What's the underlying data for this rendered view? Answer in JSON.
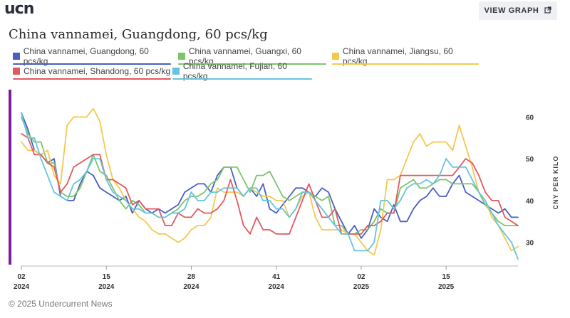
{
  "header": {
    "logo_text": "ucn",
    "view_graph_label": "VIEW GRAPH",
    "external_icon": "external-link-icon"
  },
  "title": "China vannamei, Guangdong, 60 pcs/kg",
  "footer": "© 2025 Undercurrent News",
  "chart_data": {
    "type": "line",
    "title": "China vannamei, Guangdong, 60 pcs/kg",
    "ylabel": "CNY PER KILO",
    "xlabel": "",
    "ylim": [
      25,
      65
    ],
    "yticks": [
      30,
      40,
      50,
      60
    ],
    "x_ticks": [
      {
        "day": "02",
        "year": "2024",
        "i": 0
      },
      {
        "day": "15",
        "year": "2024",
        "i": 13
      },
      {
        "day": "28",
        "year": "2024",
        "i": 26
      },
      {
        "day": "41",
        "year": "2024",
        "i": 39
      },
      {
        "day": "02",
        "year": "2025",
        "i": 52
      },
      {
        "day": "15",
        "year": "2025",
        "i": 65
      }
    ],
    "grid": false,
    "legend": "top",
    "series": [
      {
        "name": "China vannamei, Guangdong, 60 pcs/kg",
        "color": "#4a5fc1",
        "values": [
          61,
          57,
          52,
          51,
          49,
          50,
          41,
          40,
          40,
          44,
          47,
          46,
          43,
          42,
          41,
          40,
          41,
          37,
          40,
          38,
          37,
          38,
          37,
          38,
          39,
          42,
          43,
          44,
          44,
          42,
          46,
          48,
          48,
          43,
          41,
          43,
          41,
          44,
          38,
          37,
          39,
          41,
          43,
          43,
          42,
          41,
          43,
          42,
          38,
          35,
          32,
          34,
          31,
          33,
          38,
          36,
          35,
          39,
          35,
          35,
          38,
          40,
          41,
          43,
          41,
          41,
          44,
          46,
          42,
          41,
          40,
          39,
          38,
          37,
          38,
          36,
          36
        ]
      },
      {
        "name": "China vannamei, Guangxi, 60 pcs/kg",
        "color": "#7dc56b",
        "values": [
          60,
          56,
          54,
          54,
          49,
          49,
          42,
          41,
          41,
          43,
          47,
          51,
          47,
          46,
          43,
          40,
          38,
          40,
          39,
          37,
          37,
          36,
          36,
          37,
          38,
          40,
          41,
          41,
          42,
          44,
          45,
          48,
          48,
          48,
          45,
          42,
          46,
          46,
          47,
          44,
          41,
          40,
          41,
          42,
          42,
          41,
          40,
          41,
          34,
          34,
          32,
          32,
          33,
          33,
          35,
          38,
          37,
          37,
          43,
          44,
          45,
          43,
          43,
          44,
          45,
          45,
          44,
          44,
          44,
          44,
          42,
          39,
          37,
          35,
          34,
          34,
          34
        ]
      },
      {
        "name": "China vannamei, Jiangsu, 60 pcs/kg",
        "color": "#f4c84f",
        "values": [
          54,
          52,
          52,
          51,
          52,
          46,
          44,
          58,
          60,
          60,
          60,
          62,
          59,
          51,
          45,
          43,
          40,
          38,
          36,
          35,
          33,
          32,
          32,
          31,
          30,
          31,
          33,
          34,
          34,
          36,
          43,
          42,
          42,
          42,
          41,
          43,
          42,
          41,
          41,
          40,
          40,
          36,
          38,
          41,
          42,
          36,
          33,
          33,
          33,
          33,
          32,
          32,
          30,
          28,
          27,
          33,
          45,
          45,
          46,
          50,
          54,
          56,
          53,
          54,
          54,
          54,
          52,
          58,
          53,
          48,
          42,
          40,
          36,
          34,
          31,
          28,
          29
        ]
      },
      {
        "name": "China vannamei, Shandong, 60 pcs/kg",
        "color": "#e2595d",
        "values": [
          56,
          55,
          51,
          51,
          49,
          48,
          42,
          44,
          48,
          49,
          50,
          51,
          51,
          45,
          45,
          44,
          43,
          39,
          40,
          38,
          38,
          38,
          34,
          34,
          37,
          36,
          36,
          38,
          37,
          37,
          38,
          40,
          45,
          40,
          34,
          32,
          36,
          33,
          33,
          32,
          32,
          32,
          36,
          40,
          44,
          40,
          36,
          36,
          38,
          32,
          32,
          32,
          32,
          34,
          34,
          35,
          37,
          37,
          46,
          46,
          46,
          46,
          46,
          46,
          46,
          46,
          46,
          48,
          50,
          49,
          46,
          42,
          40,
          40,
          36,
          35,
          34
        ]
      },
      {
        "name": "China vannamei, Fujian, 60 pcs/kg",
        "color": "#66c4e0",
        "values": [
          61,
          55,
          55,
          50,
          46,
          42,
          41,
          40,
          44,
          45,
          47,
          50,
          50,
          45,
          42,
          41,
          40,
          38,
          38,
          37,
          37,
          36,
          36,
          37,
          37,
          38,
          42,
          40,
          40,
          42,
          42,
          43,
          43,
          43,
          41,
          43,
          43,
          40,
          40,
          38,
          38,
          36,
          38,
          42,
          42,
          40,
          38,
          36,
          34,
          32,
          32,
          28,
          28,
          28,
          30,
          40,
          40,
          38,
          40,
          43,
          44,
          44,
          45,
          44,
          46,
          50,
          48,
          48,
          48,
          45,
          42,
          40,
          37,
          34,
          32,
          30,
          26
        ]
      }
    ]
  }
}
